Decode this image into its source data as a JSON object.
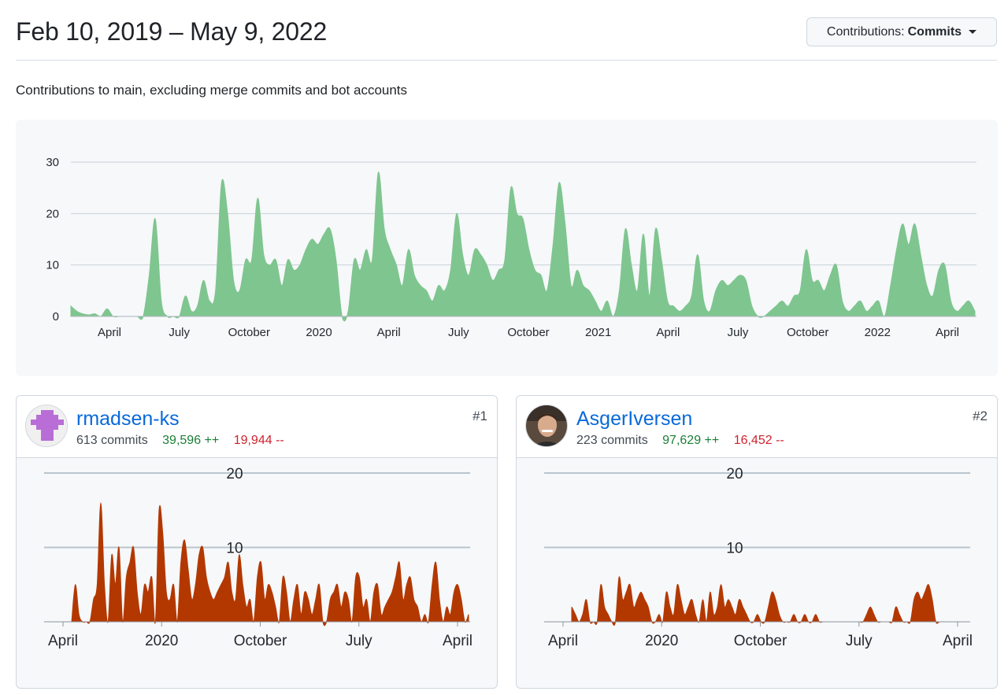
{
  "header": {
    "date_range": "Feb 10, 2019 – May 9, 2022",
    "contributions_label": "Contributions:",
    "contributions_value": "Commits"
  },
  "subtitle": "Contributions to main, excluding merge commits and bot accounts",
  "chart_data": [
    {
      "type": "area",
      "y_ticks": [
        0,
        10,
        20,
        30
      ],
      "ylim": [
        0,
        30
      ],
      "x_ticks": [
        "April",
        "July",
        "October",
        "2020",
        "April",
        "July",
        "October",
        "2021",
        "April",
        "July",
        "October",
        "2022",
        "April"
      ],
      "grid": true,
      "color": "#7fc58f",
      "series": [
        {
          "values": [
            2,
            1,
            0.5,
            0.3,
            0.5,
            0,
            1.5,
            0,
            0,
            0,
            0,
            0,
            0,
            8,
            19,
            3,
            0,
            0,
            0,
            4,
            1,
            2,
            7,
            3,
            5,
            26,
            20,
            7,
            5,
            11,
            11,
            23,
            12,
            10,
            11,
            6,
            11,
            9,
            10,
            13,
            15,
            14,
            16,
            17,
            11,
            0,
            1,
            11,
            9,
            13,
            11,
            28,
            17,
            13,
            10,
            6,
            13,
            8,
            6,
            5,
            3,
            6,
            5,
            9,
            20,
            12,
            8,
            13,
            12,
            10,
            7,
            9,
            11,
            25,
            20,
            19,
            13,
            9,
            8,
            5,
            14,
            26,
            18,
            6,
            9,
            6,
            5,
            3,
            1,
            3,
            0,
            5,
            17,
            10,
            5,
            16,
            4,
            17,
            11,
            3,
            2,
            1,
            2,
            4,
            12,
            3,
            1,
            5,
            7,
            6,
            7,
            8,
            7,
            2,
            0,
            0,
            1,
            2,
            3,
            2,
            4,
            5,
            13,
            7,
            7,
            5,
            8,
            10,
            3,
            1,
            2,
            3,
            1,
            2,
            3,
            0,
            6,
            13,
            18,
            14,
            18,
            12,
            6,
            4,
            9,
            10,
            3,
            1,
            2,
            3,
            1
          ]
        }
      ]
    },
    {
      "type": "area",
      "y_ticks": [
        10,
        20
      ],
      "ylim": [
        0,
        20
      ],
      "x_ticks": [
        "April",
        "2020",
        "October",
        "July",
        "April"
      ],
      "grid": true,
      "color": "#b33800",
      "series": [
        {
          "name": "rmadsen-ks",
          "values": [
            0,
            5,
            1,
            0,
            0,
            0,
            3,
            5,
            16,
            5,
            0,
            9,
            5,
            10,
            0,
            6,
            8,
            10,
            4,
            1,
            5,
            4,
            6,
            0,
            15,
            12,
            4,
            3,
            5,
            0,
            8,
            11,
            7,
            3,
            5,
            9,
            10,
            6,
            4,
            3,
            4,
            5,
            6,
            8,
            4,
            3,
            9,
            5,
            2,
            3,
            0,
            6,
            8,
            3,
            5,
            4,
            2,
            0,
            6,
            4,
            0,
            3,
            5,
            1,
            4,
            3,
            1,
            3,
            5,
            0,
            0,
            3,
            4,
            5,
            2,
            4,
            3,
            0,
            6,
            6,
            2,
            3,
            0,
            4,
            5,
            1,
            2,
            3,
            4,
            6,
            8,
            3,
            5,
            6,
            3,
            2,
            0,
            1,
            0,
            5,
            8,
            3,
            0,
            2,
            1,
            4,
            5,
            3,
            0,
            1
          ]
        }
      ]
    },
    {
      "type": "area",
      "y_ticks": [
        10,
        20
      ],
      "ylim": [
        0,
        20
      ],
      "x_ticks": [
        "April",
        "2020",
        "October",
        "July",
        "April"
      ],
      "grid": true,
      "color": "#b33800",
      "series": [
        {
          "name": "AsgerIversen",
          "values": [
            2,
            1,
            0,
            1,
            3,
            0,
            0,
            0,
            5,
            2,
            1,
            0,
            0,
            6,
            3,
            4,
            5,
            2,
            3,
            4,
            3,
            2,
            0,
            0,
            1,
            0,
            4,
            2,
            1,
            5,
            3,
            1,
            2,
            3,
            1,
            0,
            3,
            0,
            4,
            1,
            2,
            5,
            2,
            3,
            2,
            1,
            3,
            2,
            1,
            0,
            0,
            1,
            0,
            0,
            2,
            4,
            3,
            1,
            0,
            0,
            0,
            1,
            0,
            0,
            1,
            0,
            0,
            1,
            0,
            0,
            0,
            0,
            0,
            0,
            0,
            0,
            0,
            0,
            0,
            0,
            0,
            1,
            2,
            1,
            0,
            0,
            0,
            0,
            0,
            2,
            1,
            0,
            0,
            0,
            3,
            4,
            3,
            4,
            5,
            3,
            0,
            0,
            0,
            0,
            0,
            0,
            0,
            0,
            0,
            0
          ]
        }
      ]
    }
  ],
  "contributors": [
    {
      "rank": "#1",
      "username": "rmadsen-ks",
      "commits": "613 commits",
      "additions": "39,596 ++",
      "deletions": "19,944 --",
      "avatar": "pixel-identicon"
    },
    {
      "rank": "#2",
      "username": "AsgerIversen",
      "commits": "223 commits",
      "additions": "97,629 ++",
      "deletions": "16,452 --",
      "avatar": "profile-photo"
    }
  ]
}
